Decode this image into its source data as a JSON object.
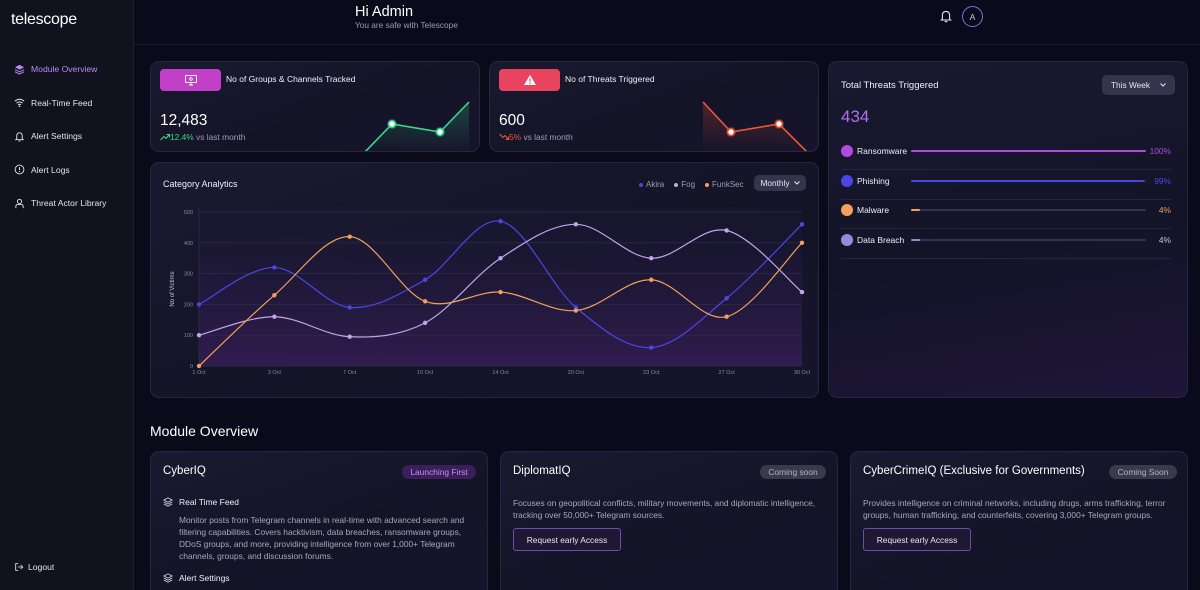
{
  "app": {
    "logo": "telescope"
  },
  "sidebar": {
    "items": [
      {
        "label": "Module Overview",
        "icon": "layers-icon",
        "active": true
      },
      {
        "label": "Real-Time Feed",
        "icon": "wifi-icon",
        "active": false
      },
      {
        "label": "Alert Settings",
        "icon": "bell-icon",
        "active": false
      },
      {
        "label": "Alert Logs",
        "icon": "alert-circle-icon",
        "active": false
      },
      {
        "label": "Threat Actor Library",
        "icon": "user-icon",
        "active": false
      }
    ],
    "logout": "Logout"
  },
  "header": {
    "greeting": "Hi Admin",
    "subtitle": "You are safe with Telescope",
    "avatar_initial": "A"
  },
  "stats": [
    {
      "title": "No of Groups & Channels Tracked",
      "value": "12,483",
      "delta": "12.4%",
      "delta_label": "vs last month",
      "color": "#3dd68c",
      "accent": "#c23fc8",
      "icon": "monitor-icon"
    },
    {
      "title": "No of Threats Triggered",
      "value": "600",
      "delta": "5%",
      "delta_label": "vs last month",
      "color": "#f0553a",
      "accent": "#e8445f",
      "icon": "warning-icon"
    }
  ],
  "category": {
    "title": "Category Analytics",
    "legend": [
      "Akira",
      "Fog",
      "FunkSec"
    ],
    "period": "Monthly"
  },
  "chart_data": {
    "type": "line",
    "title": "Category Analytics",
    "ylabel": "No of Victims",
    "xlabel": "",
    "categories": [
      "1 Oct",
      "3 Oct",
      "7 Oct",
      "10 Oct",
      "14 Oct",
      "20 Oct",
      "23 Oct",
      "27 Oct",
      "30 Oct"
    ],
    "yticks": [
      0,
      100,
      200,
      300,
      400,
      500
    ],
    "ylim": [
      0,
      500
    ],
    "grid": true,
    "legend_position": "top-right",
    "series": [
      {
        "name": "Akira",
        "color": "#4b46e6",
        "values": [
          200,
          320,
          190,
          280,
          470,
          190,
          60,
          220,
          460
        ]
      },
      {
        "name": "Fog",
        "color": "#c2a4ea",
        "values": [
          100,
          160,
          95,
          140,
          350,
          460,
          350,
          440,
          240
        ]
      },
      {
        "name": "FunkSec",
        "color": "#f2a05a",
        "values": [
          0,
          230,
          420,
          210,
          240,
          180,
          280,
          160,
          400
        ]
      }
    ]
  },
  "total_threats": {
    "title": "Total Threats Triggered",
    "value": "434",
    "period": "This Week",
    "rows": [
      {
        "label": "Ransomware",
        "percent": "100%",
        "fraction": 1.0,
        "color": "#b04ae0",
        "text_color": "#b04ae0"
      },
      {
        "label": "Phishing",
        "percent": "99%",
        "fraction": 0.99,
        "color": "#4a46e8",
        "text_color": "#4a46e8"
      },
      {
        "label": "Malware",
        "percent": "4%",
        "fraction": 0.04,
        "color": "#f2a05a",
        "text_color": "#f2a05a"
      },
      {
        "label": "Data Breach",
        "percent": "4%",
        "fraction": 0.04,
        "color": "#9c88d8",
        "text_color": "#c8c6d6"
      }
    ]
  },
  "module_overview": {
    "title": "Module Overview",
    "modules": [
      {
        "name": "CyberIQ",
        "badge": "Launching First",
        "features": [
          {
            "title": "Real Time Feed",
            "body": "Monitor posts from Telegram channels in real-time with advanced search and filtering capabilities. Covers hacktivism, data breaches, ransomware groups, DDoS groups, and more, providing intelligence from over 1,000+ Telegram channels, groups, and discussion forums."
          },
          {
            "title": "Alert Settings",
            "body": ""
          }
        ]
      },
      {
        "name": "DiplomatIQ",
        "badge": "Coming soon",
        "description": "Focuses on geopolitical conflicts, military movements, and diplomatic intelligence, tracking over 50,000+ Telegram sources.",
        "button": "Request early Access"
      },
      {
        "name": "CyberCrimeIQ (Exclusive for Governments)",
        "badge": "Coming Soon",
        "description": "Provides intelligence on criminal networks, including drugs, arms trafficking, terror groups, human trafficking, and counterfeits, covering 3,000+ Telegram groups.",
        "button": "Request early Access"
      }
    ]
  }
}
